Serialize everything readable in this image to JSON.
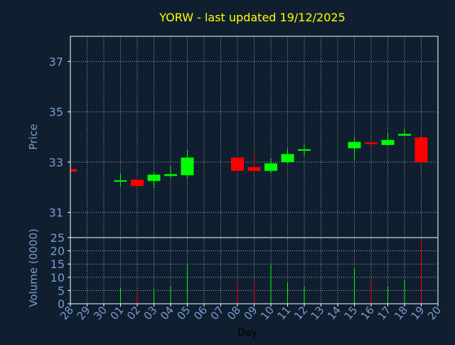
{
  "chart_data": {
    "type": "candlestick",
    "title": "YORW - last updated 19/12/2025",
    "price_axis": {
      "label": "Price",
      "range": [
        30.0,
        38.0
      ],
      "ticks": [
        31,
        33,
        35,
        37
      ]
    },
    "volume_axis": {
      "label": "Volume (0000)",
      "range": [
        0,
        25
      ],
      "ticks": [
        0,
        5,
        10,
        15,
        20,
        25
      ]
    },
    "x_axis": {
      "label": "Day",
      "ticks": [
        "28",
        "29",
        "30",
        "01",
        "02",
        "03",
        "04",
        "05",
        "06",
        "07",
        "08",
        "09",
        "10",
        "11",
        "12",
        "13",
        "14",
        "15",
        "16",
        "17",
        "18",
        "19",
        "20"
      ]
    },
    "grid": true,
    "colors": {
      "background": "#0f1f30",
      "up": "#00ff00",
      "down": "#ff0000",
      "grid": "#c8c8c8",
      "axis_text": "#7a9ccc",
      "title": "#ffff00",
      "frame": "#ffffff"
    },
    "candles": [
      {
        "day": "28",
        "open": 32.72,
        "high": 32.72,
        "low": 32.62,
        "close": 32.62,
        "volume": 0
      },
      {
        "day": "01",
        "open": 32.22,
        "high": 32.58,
        "low": 32.02,
        "close": 32.28,
        "volume": 6
      },
      {
        "day": "02",
        "open": 32.3,
        "high": 32.32,
        "low": 32.05,
        "close": 32.05,
        "volume": 4.5
      },
      {
        "day": "03",
        "open": 32.25,
        "high": 32.6,
        "low": 31.95,
        "close": 32.5,
        "volume": 5.5
      },
      {
        "day": "04",
        "open": 32.45,
        "high": 32.85,
        "low": 32.35,
        "close": 32.52,
        "volume": 6.5
      },
      {
        "day": "05",
        "open": 32.48,
        "high": 33.5,
        "low": 32.35,
        "close": 33.18,
        "volume": 14.5
      },
      {
        "day": "08",
        "open": 33.18,
        "high": 33.18,
        "low": 32.62,
        "close": 32.65,
        "volume": 7
      },
      {
        "day": "09",
        "open": 32.8,
        "high": 33.35,
        "low": 32.52,
        "close": 32.65,
        "volume": 7.5
      },
      {
        "day": "10",
        "open": 32.65,
        "high": 33.15,
        "low": 32.58,
        "close": 32.95,
        "volume": 14.5
      },
      {
        "day": "11",
        "open": 33.0,
        "high": 33.55,
        "low": 32.95,
        "close": 33.32,
        "volume": 8
      },
      {
        "day": "12",
        "open": 33.45,
        "high": 33.7,
        "low": 33.22,
        "close": 33.48,
        "volume": 6.5
      },
      {
        "day": "15",
        "open": 33.55,
        "high": 33.98,
        "low": 33.1,
        "close": 33.8,
        "volume": 13.5
      },
      {
        "day": "16",
        "open": 33.78,
        "high": 33.78,
        "low": 33.55,
        "close": 33.72,
        "volume": 9
      },
      {
        "day": "17",
        "open": 33.68,
        "high": 34.15,
        "low": 33.65,
        "close": 33.88,
        "volume": 6.5
      },
      {
        "day": "18",
        "open": 34.05,
        "high": 34.3,
        "low": 34.05,
        "close": 34.12,
        "volume": 9
      },
      {
        "day": "19",
        "open": 33.98,
        "high": 33.98,
        "low": 32.95,
        "close": 33.0,
        "volume": 24
      }
    ]
  }
}
